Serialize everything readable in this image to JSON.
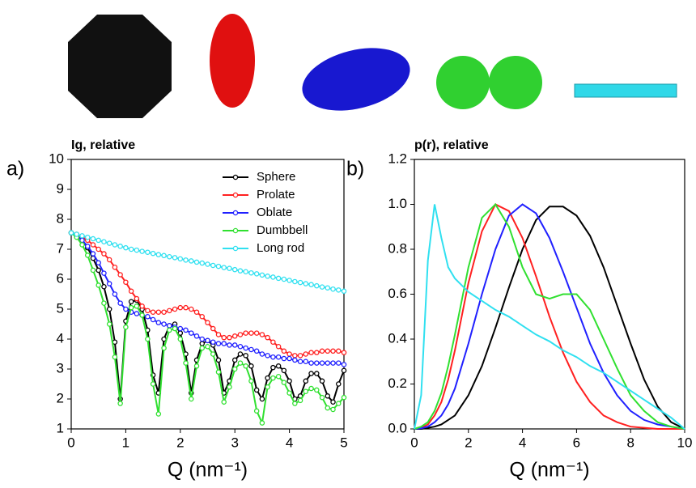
{
  "chart_data": [
    {
      "type": "line",
      "panel_label": "a)",
      "ylabel": "Ig, relative",
      "xlabel": "Q (nm⁻¹)",
      "xlim": [
        0,
        5
      ],
      "ylim": [
        1,
        10
      ],
      "xticks": [
        0,
        1,
        2,
        3,
        4,
        5
      ],
      "yticks": [
        1,
        2,
        3,
        4,
        5,
        6,
        7,
        8,
        9,
        10
      ],
      "markers": true,
      "legend": "upper right",
      "x": [
        0,
        0.1,
        0.2,
        0.3,
        0.4,
        0.5,
        0.6,
        0.7,
        0.8,
        0.9,
        1,
        1.1,
        1.2,
        1.3,
        1.4,
        1.5,
        1.6,
        1.7,
        1.8,
        1.9,
        2,
        2.1,
        2.2,
        2.3,
        2.4,
        2.5,
        2.6,
        2.7,
        2.8,
        2.9,
        3,
        3.1,
        3.2,
        3.3,
        3.4,
        3.5,
        3.6,
        3.7,
        3.8,
        3.9,
        4,
        4.1,
        4.2,
        4.3,
        4.4,
        4.5,
        4.6,
        4.7,
        4.8,
        4.9,
        5
      ],
      "series": [
        {
          "name": "Sphere",
          "color": "#000000",
          "values": [
            7.55,
            7.45,
            7.3,
            7.05,
            6.7,
            6.3,
            5.75,
            5.0,
            3.9,
            2.0,
            4.6,
            5.25,
            5.3,
            5.0,
            4.3,
            2.8,
            2.2,
            4.0,
            4.45,
            4.5,
            4.2,
            3.5,
            2.2,
            3.3,
            3.85,
            3.95,
            3.8,
            3.3,
            2.2,
            2.6,
            3.3,
            3.5,
            3.45,
            3.1,
            2.3,
            2.0,
            2.7,
            3.05,
            3.1,
            2.95,
            2.6,
            2.0,
            2.1,
            2.6,
            2.85,
            2.85,
            2.6,
            2.1,
            1.9,
            2.5,
            2.95
          ]
        },
        {
          "name": "Prolate",
          "color": "#ff2020",
          "values": [
            7.55,
            7.5,
            7.4,
            7.3,
            7.15,
            7.0,
            6.85,
            6.65,
            6.4,
            6.15,
            5.9,
            5.6,
            5.35,
            5.1,
            4.95,
            4.9,
            4.9,
            4.9,
            4.95,
            5.0,
            5.05,
            5.05,
            5.0,
            4.9,
            4.75,
            4.55,
            4.35,
            4.15,
            4.05,
            4.05,
            4.1,
            4.15,
            4.2,
            4.2,
            4.2,
            4.15,
            4.05,
            3.9,
            3.75,
            3.6,
            3.5,
            3.45,
            3.45,
            3.5,
            3.55,
            3.55,
            3.6,
            3.6,
            3.6,
            3.6,
            3.55
          ]
        },
        {
          "name": "Oblate",
          "color": "#2020ff",
          "values": [
            7.55,
            7.45,
            7.3,
            7.1,
            6.85,
            6.55,
            6.2,
            5.85,
            5.5,
            5.2,
            5.0,
            4.9,
            4.85,
            4.8,
            4.75,
            4.65,
            4.55,
            4.5,
            4.45,
            4.4,
            4.35,
            4.3,
            4.2,
            4.1,
            4.0,
            3.95,
            3.9,
            3.85,
            3.85,
            3.8,
            3.8,
            3.75,
            3.7,
            3.65,
            3.6,
            3.5,
            3.45,
            3.4,
            3.4,
            3.35,
            3.35,
            3.3,
            3.25,
            3.25,
            3.2,
            3.2,
            3.2,
            3.2,
            3.2,
            3.2,
            3.15
          ]
        },
        {
          "name": "Dumbbell",
          "color": "#30e030",
          "values": [
            7.55,
            7.4,
            7.15,
            6.8,
            6.3,
            5.8,
            5.2,
            4.5,
            3.4,
            1.85,
            4.4,
            5.05,
            5.1,
            4.8,
            4.0,
            2.5,
            1.5,
            3.7,
            4.3,
            4.35,
            4.0,
            3.2,
            2.0,
            3.1,
            3.7,
            3.75,
            3.5,
            2.9,
            1.9,
            2.4,
            3.0,
            3.2,
            3.1,
            2.6,
            1.6,
            1.2,
            2.4,
            2.7,
            2.75,
            2.55,
            2.2,
            1.85,
            1.95,
            2.25,
            2.35,
            2.3,
            2.05,
            1.7,
            1.65,
            1.85,
            2.05
          ]
        },
        {
          "name": "Long rod",
          "color": "#30e0f0",
          "values": [
            7.55,
            7.5,
            7.45,
            7.4,
            7.35,
            7.3,
            7.25,
            7.2,
            7.15,
            7.1,
            7.05,
            7.0,
            6.97,
            6.93,
            6.9,
            6.86,
            6.82,
            6.79,
            6.75,
            6.72,
            6.68,
            6.64,
            6.61,
            6.57,
            6.54,
            6.5,
            6.46,
            6.43,
            6.39,
            6.36,
            6.32,
            6.28,
            6.25,
            6.21,
            6.18,
            6.14,
            6.1,
            6.07,
            6.03,
            6.0,
            5.96,
            5.92,
            5.89,
            5.85,
            5.82,
            5.78,
            5.74,
            5.71,
            5.67,
            5.64,
            5.6
          ]
        }
      ]
    },
    {
      "type": "line",
      "panel_label": "b)",
      "ylabel": "p(r), relative",
      "xlabel": "Q (nm⁻¹)",
      "xlim": [
        0,
        10
      ],
      "ylim": [
        0,
        1.2
      ],
      "xticks": [
        0,
        2,
        4,
        6,
        8,
        10
      ],
      "yticks": [
        {
          "value": 0,
          "label": "0.0"
        },
        0.2,
        0.4,
        0.6,
        0.8,
        {
          "value": 1,
          "label": "1.0"
        },
        1.2
      ],
      "markers": false,
      "x": [
        0,
        0.25,
        0.5,
        0.75,
        1,
        1.25,
        1.5,
        2,
        2.5,
        3,
        3.5,
        4,
        4.5,
        5,
        5.5,
        6,
        6.5,
        7,
        7.5,
        8,
        8.5,
        9,
        9.5,
        10
      ],
      "series": [
        {
          "color": "#000000",
          "values": [
            0,
            0,
            0.005,
            0.01,
            0.02,
            0.04,
            0.06,
            0.15,
            0.28,
            0.45,
            0.63,
            0.8,
            0.93,
            0.99,
            0.99,
            0.95,
            0.86,
            0.72,
            0.55,
            0.38,
            0.22,
            0.1,
            0.03,
            0
          ]
        },
        {
          "color": "#ff2020",
          "values": [
            0,
            0.005,
            0.02,
            0.06,
            0.12,
            0.22,
            0.35,
            0.65,
            0.88,
            1.0,
            0.97,
            0.85,
            0.68,
            0.5,
            0.34,
            0.21,
            0.12,
            0.06,
            0.03,
            0.01,
            0.005,
            0,
            0,
            0
          ]
        },
        {
          "color": "#2020ff",
          "values": [
            0,
            0.003,
            0.01,
            0.03,
            0.06,
            0.11,
            0.18,
            0.38,
            0.6,
            0.8,
            0.95,
            1.0,
            0.96,
            0.85,
            0.7,
            0.54,
            0.38,
            0.25,
            0.15,
            0.08,
            0.04,
            0.02,
            0.01,
            0
          ]
        },
        {
          "color": "#30e030",
          "values": [
            0,
            0.01,
            0.03,
            0.08,
            0.16,
            0.28,
            0.42,
            0.72,
            0.94,
            1.0,
            0.9,
            0.72,
            0.6,
            0.58,
            0.6,
            0.6,
            0.53,
            0.4,
            0.27,
            0.15,
            0.08,
            0.03,
            0.01,
            0
          ]
        },
        {
          "color": "#30e0f0",
          "values": [
            0,
            0.15,
            0.75,
            1.0,
            0.85,
            0.72,
            0.67,
            0.61,
            0.57,
            0.53,
            0.5,
            0.46,
            0.42,
            0.39,
            0.35,
            0.32,
            0.28,
            0.25,
            0.21,
            0.17,
            0.13,
            0.09,
            0.05,
            0
          ]
        }
      ]
    }
  ]
}
